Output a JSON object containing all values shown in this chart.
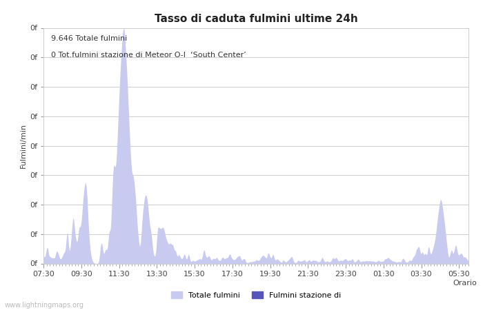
{
  "title": "Tasso di caduta fulmini ultime 24h",
  "xlabel": "Orario",
  "ylabel": "Fulmini/min",
  "annotation_line1": "9.646 Totale fulmini",
  "annotation_line2": "0 Tot.fulmini stazione di Meteor O-I  ‘South Center’",
  "legend1": "Totale fulmini",
  "legend2": "Fulmini stazione di",
  "watermark": "www.lightningmaps.org",
  "xtick_labels": [
    "07:30",
    "09:30",
    "11:30",
    "13:30",
    "15:30",
    "17:30",
    "19:30",
    "21:30",
    "23:30",
    "01:30",
    "03:30",
    "05:30"
  ],
  "fill_color_light": "#c8caef",
  "fill_color_dark": "#5555bb",
  "background_color": "#ffffff",
  "grid_color": "#cccccc",
  "title_fontsize": 11,
  "label_fontsize": 8,
  "tick_fontsize": 8,
  "annotation_fontsize": 8,
  "watermark_fontsize": 7,
  "fig_width": 7.0,
  "fig_height": 4.5,
  "fig_dpi": 100
}
